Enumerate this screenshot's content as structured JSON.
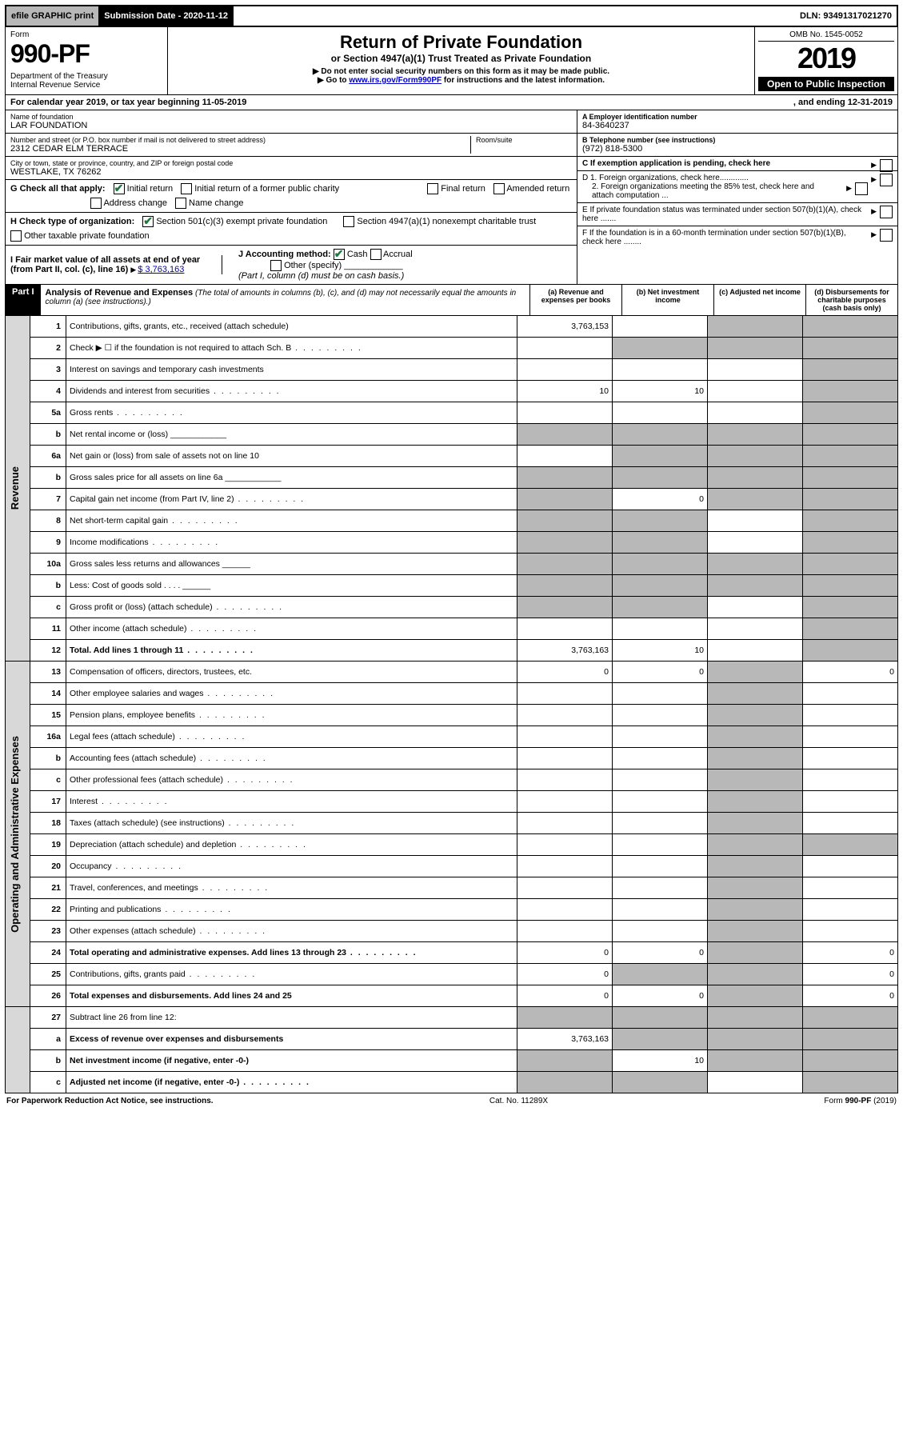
{
  "topbar": {
    "efile": "efile GRAPHIC print",
    "subdate_lbl": "Submission Date - 2020-11-12",
    "dln": "DLN: 93491317021270"
  },
  "header": {
    "form_word": "Form",
    "form_num": "990-PF",
    "dept": "Department of the Treasury\nInternal Revenue Service",
    "title": "Return of Private Foundation",
    "subtitle": "or Section 4947(a)(1) Trust Treated as Private Foundation",
    "instr1": "▶ Do not enter social security numbers on this form as it may be made public.",
    "instr2_pre": "▶ Go to ",
    "instr2_link": "www.irs.gov/Form990PF",
    "instr2_post": " for instructions and the latest information.",
    "omb": "OMB No. 1545-0052",
    "year": "2019",
    "open": "Open to Public Inspection"
  },
  "cal": {
    "left": "For calendar year 2019, or tax year beginning 11-05-2019",
    "right": ", and ending 12-31-2019"
  },
  "info": {
    "name_lbl": "Name of foundation",
    "name": "LAR FOUNDATION",
    "addr_lbl": "Number and street (or P.O. box number if mail is not delivered to street address)",
    "addr": "2312 CEDAR ELM TERRACE",
    "room_lbl": "Room/suite",
    "city_lbl": "City or town, state or province, country, and ZIP or foreign postal code",
    "city": "WESTLAKE, TX  76262",
    "a_lbl": "A Employer identification number",
    "a_val": "84-3640237",
    "b_lbl": "B Telephone number (see instructions)",
    "b_val": "(972) 818-5300",
    "c_lbl": "C If exemption application is pending, check here",
    "d1": "D 1. Foreign organizations, check here.............",
    "d2": "2. Foreign organizations meeting the 85% test, check here and attach computation ...",
    "e": "E  If private foundation status was terminated under section 507(b)(1)(A), check here .......",
    "f": "F  If the foundation is in a 60-month termination under section 507(b)(1)(B), check here ........"
  },
  "g": {
    "lbl": "G Check all that apply:",
    "initial": "Initial return",
    "initial_former": "Initial return of a former public charity",
    "final": "Final return",
    "amended": "Amended return",
    "addr_change": "Address change",
    "name_change": "Name change"
  },
  "h": {
    "lbl": "H Check type of organization:",
    "s501": "Section 501(c)(3) exempt private foundation",
    "s4947": "Section 4947(a)(1) nonexempt charitable trust",
    "other_tax": "Other taxable private foundation"
  },
  "i": {
    "lbl": "I Fair market value of all assets at end of year (from Part II, col. (c), line 16)",
    "val": "$  3,763,163"
  },
  "j": {
    "lbl": "J Accounting method:",
    "cash": "Cash",
    "accrual": "Accrual",
    "other": "Other (specify)",
    "note": "(Part I, column (d) must be on cash basis.)"
  },
  "part1": {
    "tag": "Part I",
    "title": "Analysis of Revenue and Expenses",
    "note": "(The total of amounts in columns (b), (c), and (d) may not necessarily equal the amounts in column (a) (see instructions).)",
    "col_a": "(a) Revenue and expenses per books",
    "col_b": "(b) Net investment income",
    "col_c": "(c) Adjusted net income",
    "col_d": "(d) Disbursements for charitable purposes (cash basis only)"
  },
  "sections": {
    "revenue": "Revenue",
    "opex": "Operating and Administrative Expenses"
  },
  "rows": [
    {
      "n": "1",
      "d": "Contributions, gifts, grants, etc., received (attach schedule)",
      "a": "3,763,153",
      "b": "",
      "c": "grey",
      "dd": "grey"
    },
    {
      "n": "2",
      "d": "Check ▶ ☐ if the foundation is not required to attach Sch. B",
      "a": "",
      "b": "grey",
      "c": "grey",
      "dd": "grey",
      "dots": true
    },
    {
      "n": "3",
      "d": "Interest on savings and temporary cash investments",
      "a": "",
      "b": "",
      "c": "",
      "dd": "grey"
    },
    {
      "n": "4",
      "d": "Dividends and interest from securities",
      "a": "10",
      "b": "10",
      "c": "",
      "dd": "grey",
      "dots": true
    },
    {
      "n": "5a",
      "d": "Gross rents",
      "a": "",
      "b": "",
      "c": "",
      "dd": "grey",
      "dots": true
    },
    {
      "n": "b",
      "d": "Net rental income or (loss)  ____________",
      "a": "grey",
      "b": "grey",
      "c": "grey",
      "dd": "grey"
    },
    {
      "n": "6a",
      "d": "Net gain or (loss) from sale of assets not on line 10",
      "a": "",
      "b": "grey",
      "c": "grey",
      "dd": "grey"
    },
    {
      "n": "b",
      "d": "Gross sales price for all assets on line 6a  ____________",
      "a": "grey",
      "b": "grey",
      "c": "grey",
      "dd": "grey"
    },
    {
      "n": "7",
      "d": "Capital gain net income (from Part IV, line 2)",
      "a": "grey",
      "b": "0",
      "c": "grey",
      "dd": "grey",
      "dots": true
    },
    {
      "n": "8",
      "d": "Net short-term capital gain",
      "a": "grey",
      "b": "grey",
      "c": "",
      "dd": "grey",
      "dots": true
    },
    {
      "n": "9",
      "d": "Income modifications",
      "a": "grey",
      "b": "grey",
      "c": "",
      "dd": "grey",
      "dots": true
    },
    {
      "n": "10a",
      "d": "Gross sales less returns and allowances  ______",
      "a": "grey",
      "b": "grey",
      "c": "grey",
      "dd": "grey"
    },
    {
      "n": "b",
      "d": "Less: Cost of goods sold   .  .  .  .  ______",
      "a": "grey",
      "b": "grey",
      "c": "grey",
      "dd": "grey"
    },
    {
      "n": "c",
      "d": "Gross profit or (loss) (attach schedule)",
      "a": "grey",
      "b": "grey",
      "c": "",
      "dd": "grey",
      "dots": true
    },
    {
      "n": "11",
      "d": "Other income (attach schedule)",
      "a": "",
      "b": "",
      "c": "",
      "dd": "grey",
      "dots": true
    },
    {
      "n": "12",
      "d": "Total. Add lines 1 through 11",
      "a": "3,763,163",
      "b": "10",
      "c": "",
      "dd": "grey",
      "bold": true,
      "dots": true
    }
  ],
  "rows2": [
    {
      "n": "13",
      "d": "Compensation of officers, directors, trustees, etc.",
      "a": "0",
      "b": "0",
      "c": "grey",
      "dd": "0"
    },
    {
      "n": "14",
      "d": "Other employee salaries and wages",
      "a": "",
      "b": "",
      "c": "grey",
      "dd": "",
      "dots": true
    },
    {
      "n": "15",
      "d": "Pension plans, employee benefits",
      "a": "",
      "b": "",
      "c": "grey",
      "dd": "",
      "dots": true
    },
    {
      "n": "16a",
      "d": "Legal fees (attach schedule)",
      "a": "",
      "b": "",
      "c": "grey",
      "dd": "",
      "dots": true
    },
    {
      "n": "b",
      "d": "Accounting fees (attach schedule)",
      "a": "",
      "b": "",
      "c": "grey",
      "dd": "",
      "dots": true
    },
    {
      "n": "c",
      "d": "Other professional fees (attach schedule)",
      "a": "",
      "b": "",
      "c": "grey",
      "dd": "",
      "dots": true
    },
    {
      "n": "17",
      "d": "Interest",
      "a": "",
      "b": "",
      "c": "grey",
      "dd": "",
      "dots": true
    },
    {
      "n": "18",
      "d": "Taxes (attach schedule) (see instructions)",
      "a": "",
      "b": "",
      "c": "grey",
      "dd": "",
      "dots": true
    },
    {
      "n": "19",
      "d": "Depreciation (attach schedule) and depletion",
      "a": "",
      "b": "",
      "c": "grey",
      "dd": "grey",
      "dots": true
    },
    {
      "n": "20",
      "d": "Occupancy",
      "a": "",
      "b": "",
      "c": "grey",
      "dd": "",
      "dots": true
    },
    {
      "n": "21",
      "d": "Travel, conferences, and meetings",
      "a": "",
      "b": "",
      "c": "grey",
      "dd": "",
      "dots": true
    },
    {
      "n": "22",
      "d": "Printing and publications",
      "a": "",
      "b": "",
      "c": "grey",
      "dd": "",
      "dots": true
    },
    {
      "n": "23",
      "d": "Other expenses (attach schedule)",
      "a": "",
      "b": "",
      "c": "grey",
      "dd": "",
      "dots": true
    },
    {
      "n": "24",
      "d": "Total operating and administrative expenses. Add lines 13 through 23",
      "a": "0",
      "b": "0",
      "c": "grey",
      "dd": "0",
      "bold": true,
      "dots": true
    },
    {
      "n": "25",
      "d": "Contributions, gifts, grants paid",
      "a": "0",
      "b": "grey",
      "c": "grey",
      "dd": "0",
      "dots": true
    },
    {
      "n": "26",
      "d": "Total expenses and disbursements. Add lines 24 and 25",
      "a": "0",
      "b": "0",
      "c": "grey",
      "dd": "0",
      "bold": true
    }
  ],
  "rows3": [
    {
      "n": "27",
      "d": "Subtract line 26 from line 12:",
      "a": "grey",
      "b": "grey",
      "c": "grey",
      "dd": "grey"
    },
    {
      "n": "a",
      "d": "Excess of revenue over expenses and disbursements",
      "a": "3,763,163",
      "b": "grey",
      "c": "grey",
      "dd": "grey",
      "bold": true
    },
    {
      "n": "b",
      "d": "Net investment income (if negative, enter -0-)",
      "a": "grey",
      "b": "10",
      "c": "grey",
      "dd": "grey",
      "bold": true
    },
    {
      "n": "c",
      "d": "Adjusted net income (if negative, enter -0-)",
      "a": "grey",
      "b": "grey",
      "c": "",
      "dd": "grey",
      "bold": true,
      "dots": true
    }
  ],
  "footer": {
    "left": "For Paperwork Reduction Act Notice, see instructions.",
    "mid": "Cat. No. 11289X",
    "right": "Form 990-PF (2019)"
  }
}
